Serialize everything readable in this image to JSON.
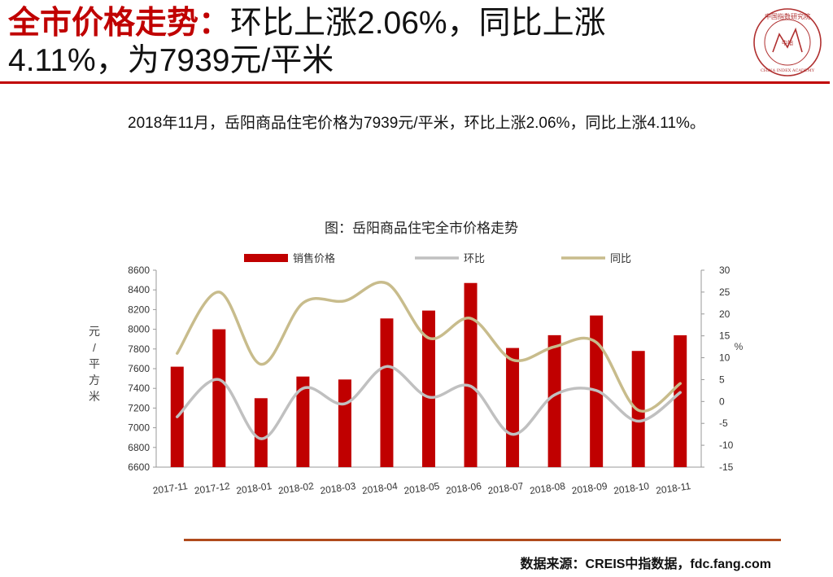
{
  "header": {
    "title_highlight": "全市价格走势：",
    "title_line1": "环比上涨2.06%，同比上涨",
    "title_line2": "4.11%，为7939元/平米",
    "logo_text_cn": "中国指数研究院",
    "logo_text_en": "CHINA INDEX ACADEMY",
    "logo_mark": "中指"
  },
  "summary": "2018年11月，岳阳商品住宅价格为7939元/平米，环比上涨2.06%，同比上涨4.11%。",
  "chart_data": {
    "type": "bar+line",
    "title": "图：岳阳商品住宅全市价格走势",
    "categories": [
      "2017-11",
      "2017-12",
      "2018-01",
      "2018-02",
      "2018-03",
      "2018-04",
      "2018-05",
      "2018-06",
      "2018-07",
      "2018-08",
      "2018-09",
      "2018-10",
      "2018-11"
    ],
    "series": [
      {
        "name": "销售价格",
        "type": "bar",
        "axis": "left",
        "color": "#c00000",
        "values": [
          7620,
          8000,
          7300,
          7520,
          7490,
          8110,
          8190,
          8470,
          7810,
          7940,
          8140,
          7780,
          7939
        ]
      },
      {
        "name": "环比",
        "type": "line",
        "axis": "right",
        "color": "#c0c0c0",
        "values": [
          -3.5,
          5.0,
          -8.5,
          3.0,
          -0.5,
          8.0,
          1.0,
          3.5,
          -7.5,
          1.5,
          2.5,
          -4.5,
          2.06
        ]
      },
      {
        "name": "同比",
        "type": "line",
        "axis": "right",
        "color": "#c8bc8c",
        "values": [
          11.0,
          25.0,
          8.5,
          22.5,
          23.0,
          27.0,
          14.5,
          19.0,
          9.5,
          12.5,
          13.5,
          -2.0,
          4.11
        ]
      }
    ],
    "ylabel_left": "元/平方米",
    "ylabel_right": "%",
    "ylim_left": [
      6600,
      8600
    ],
    "yticks_left": [
      6600,
      6800,
      7000,
      7200,
      7400,
      7600,
      7800,
      8000,
      8200,
      8400,
      8600
    ],
    "ylim_right": [
      -15,
      30
    ],
    "yticks_right": [
      -15,
      -10,
      -5,
      0,
      5,
      10,
      15,
      20,
      25,
      30
    ],
    "legend_position": "top",
    "grid": false
  },
  "footer": {
    "source": "数据来源：CREIS中指数据，fdc.fang.com"
  }
}
